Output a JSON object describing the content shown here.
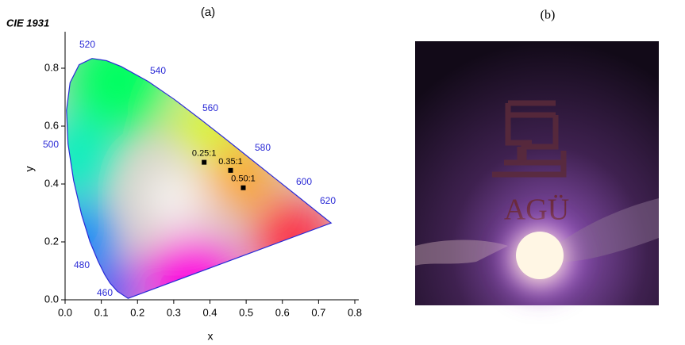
{
  "chart_data": {
    "type": "scatter",
    "panel_label": "(a)",
    "title": "CIE 1931",
    "x_label": "x",
    "y_label": "y",
    "x": [
      0.384,
      0.457,
      0.492
    ],
    "values": [
      0.475,
      0.447,
      0.387
    ],
    "point_labels": [
      "0.25:1",
      "0.35:1",
      "0.50:1"
    ],
    "color": "#000000",
    "xlim": [
      0,
      0.8
    ],
    "ylim": [
      0,
      0.9
    ],
    "xticks": [
      {
        "value": 0,
        "label": "0.0"
      },
      0.1,
      0.2,
      0.3,
      0.4,
      0.5,
      0.6,
      0.7,
      {
        "value": 0.8,
        "label": "0.8"
      }
    ],
    "yticks": [
      {
        "value": 0,
        "label": "0.0"
      },
      0.2,
      0.4,
      0.6,
      0.8
    ],
    "annotations": [
      "520",
      "540",
      "560",
      "580",
      "600",
      "620",
      "500",
      "480",
      "460"
    ]
  },
  "photo": {
    "panel_label": "(b)",
    "text": "AGÜ"
  }
}
